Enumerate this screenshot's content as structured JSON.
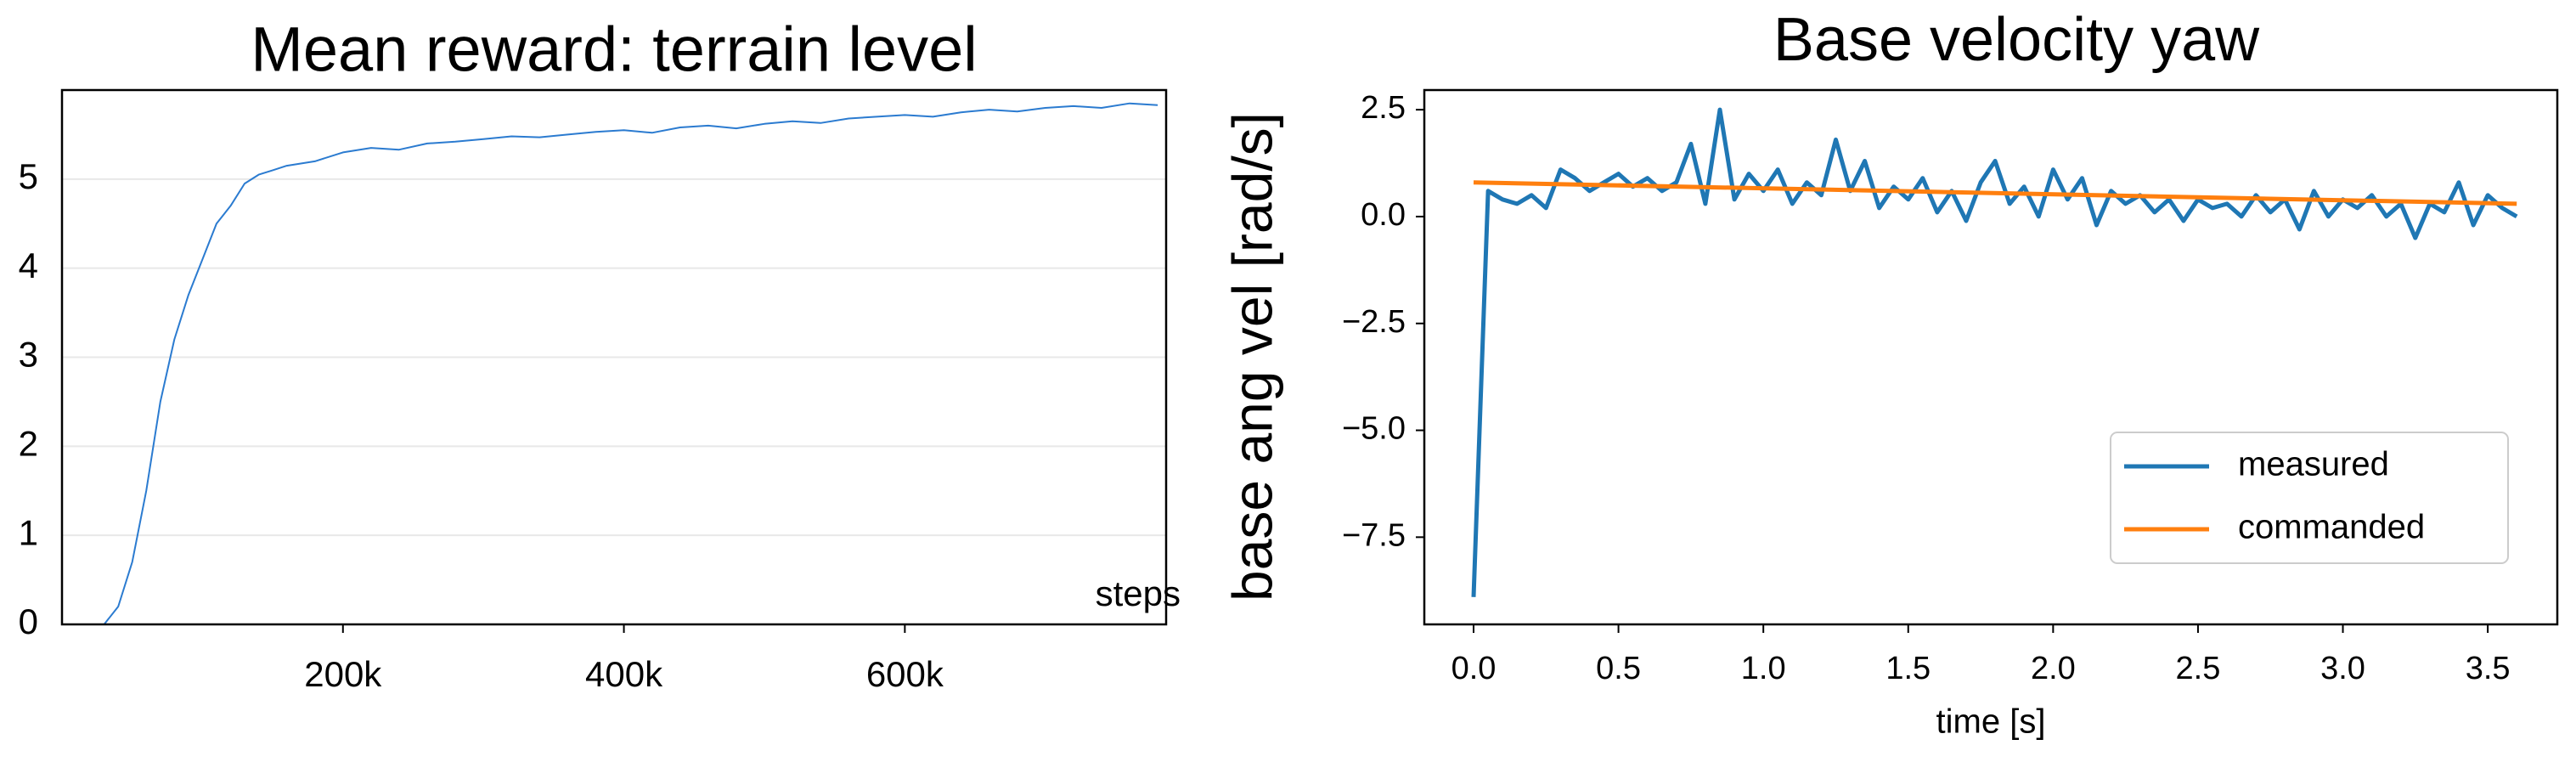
{
  "chart_data": [
    {
      "type": "line",
      "title": "Mean reward: terrain level",
      "xlabel": "steps",
      "xlim": [
        0,
        786000
      ],
      "ylim": [
        0,
        6
      ],
      "xticks": [
        {
          "value": 200000,
          "label": "200k"
        },
        {
          "value": 400000,
          "label": "400k"
        },
        {
          "value": 600000,
          "label": "600k"
        }
      ],
      "yticks": [
        0,
        1,
        2,
        3,
        4,
        5
      ],
      "grid": true,
      "series": [
        {
          "color": "#2b7bd0",
          "x": [
            30000,
            40000,
            50000,
            60000,
            70000,
            80000,
            90000,
            100000,
            110000,
            120000,
            130000,
            140000,
            150000,
            160000,
            180000,
            200000,
            220000,
            240000,
            260000,
            280000,
            300000,
            320000,
            340000,
            360000,
            380000,
            400000,
            420000,
            440000,
            460000,
            480000,
            500000,
            520000,
            540000,
            560000,
            580000,
            600000,
            620000,
            640000,
            660000,
            680000,
            700000,
            720000,
            740000,
            760000,
            780000
          ],
          "values": [
            0,
            0.2,
            0.7,
            1.5,
            2.5,
            3.2,
            3.7,
            4.1,
            4.5,
            4.7,
            4.95,
            5.05,
            5.1,
            5.15,
            5.2,
            5.3,
            5.35,
            5.33,
            5.4,
            5.42,
            5.45,
            5.48,
            5.47,
            5.5,
            5.53,
            5.55,
            5.52,
            5.58,
            5.6,
            5.57,
            5.62,
            5.65,
            5.63,
            5.68,
            5.7,
            5.72,
            5.7,
            5.75,
            5.78,
            5.76,
            5.8,
            5.82,
            5.8,
            5.85,
            5.83
          ]
        }
      ]
    },
    {
      "type": "line",
      "title": "Base velocity yaw",
      "xlabel": "time [s]",
      "ylabel": "base ang vel [rad/s]",
      "xlim": [
        -0.17,
        3.74
      ],
      "ylim": [
        -9.54,
        2.96
      ],
      "xticks": [
        {
          "value": 0,
          "label": "0.0"
        },
        {
          "value": 0.5,
          "label": "0.5"
        },
        {
          "value": 1,
          "label": "1.0"
        },
        {
          "value": 1.5,
          "label": "1.5"
        },
        {
          "value": 2,
          "label": "2.0"
        },
        {
          "value": 2.5,
          "label": "2.5"
        },
        {
          "value": 3,
          "label": "3.0"
        },
        {
          "value": 3.5,
          "label": "3.5"
        }
      ],
      "yticks": [
        {
          "value": -7.5,
          "label": "−7.5"
        },
        {
          "value": -5,
          "label": "−5.0"
        },
        {
          "value": -2.5,
          "label": "−2.5"
        },
        {
          "value": 0,
          "label": "0.0"
        },
        {
          "value": 2.5,
          "label": "2.5"
        }
      ],
      "grid": false,
      "legend": "lower right",
      "series": [
        {
          "name": "measured",
          "color": "#1f77b4",
          "x": [
            0,
            0.05,
            0.1,
            0.15,
            0.2,
            0.25,
            0.3,
            0.35,
            0.4,
            0.45,
            0.5,
            0.55,
            0.6,
            0.65,
            0.7,
            0.75,
            0.8,
            0.85,
            0.9,
            0.95,
            1,
            1.05,
            1.1,
            1.15,
            1.2,
            1.25,
            1.3,
            1.35,
            1.4,
            1.45,
            1.5,
            1.55,
            1.6,
            1.65,
            1.7,
            1.75,
            1.8,
            1.85,
            1.9,
            1.95,
            2,
            2.05,
            2.1,
            2.15,
            2.2,
            2.25,
            2.3,
            2.35,
            2.4,
            2.45,
            2.5,
            2.55,
            2.6,
            2.65,
            2.7,
            2.75,
            2.8,
            2.85,
            2.9,
            2.95,
            3,
            3.05,
            3.1,
            3.15,
            3.2,
            3.25,
            3.3,
            3.35,
            3.4,
            3.45,
            3.5,
            3.55,
            3.6
          ],
          "values": [
            -8.9,
            0.6,
            0.4,
            0.3,
            0.5,
            0.2,
            1.1,
            0.9,
            0.6,
            0.8,
            1.0,
            0.7,
            0.9,
            0.6,
            0.8,
            1.7,
            0.3,
            2.5,
            0.4,
            1.0,
            0.6,
            1.1,
            0.3,
            0.8,
            0.5,
            1.8,
            0.6,
            1.3,
            0.2,
            0.7,
            0.4,
            0.9,
            0.1,
            0.6,
            -0.1,
            0.8,
            1.3,
            0.3,
            0.7,
            0.0,
            1.1,
            0.4,
            0.9,
            -0.2,
            0.6,
            0.3,
            0.5,
            0.1,
            0.4,
            -0.1,
            0.4,
            0.2,
            0.3,
            0.0,
            0.5,
            0.1,
            0.4,
            -0.3,
            0.6,
            0.0,
            0.4,
            0.2,
            0.5,
            0.0,
            0.3,
            -0.5,
            0.3,
            0.1,
            0.8,
            -0.2,
            0.5,
            0.2,
            0.0
          ]
        },
        {
          "name": "commanded",
          "color": "#ff7f0e",
          "x": [
            0,
            3.6
          ],
          "values": [
            0.8,
            0.3
          ]
        }
      ]
    }
  ]
}
